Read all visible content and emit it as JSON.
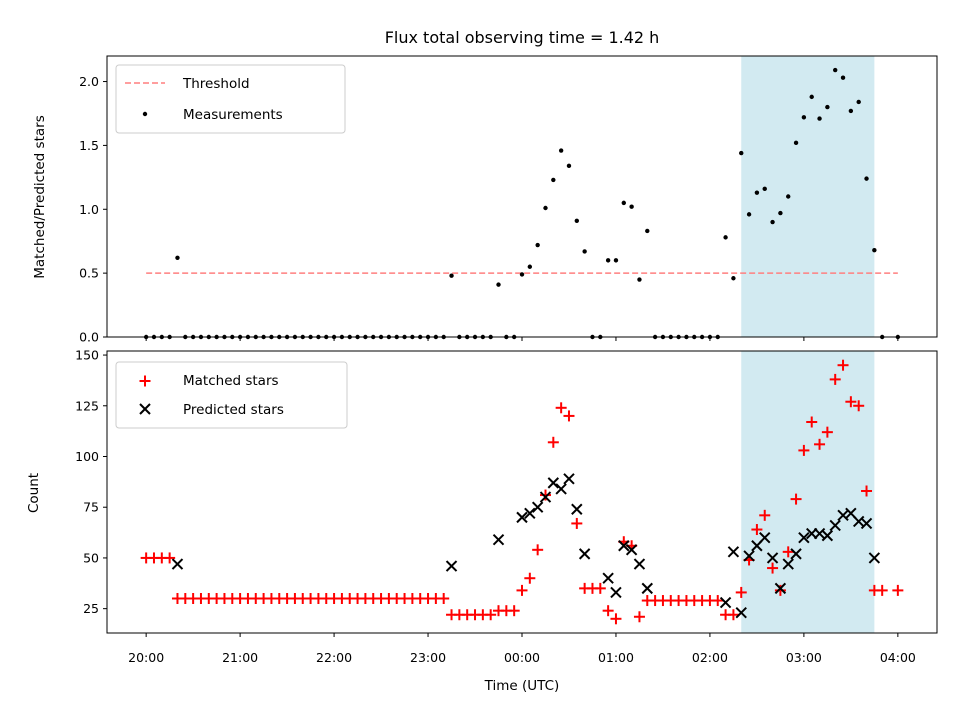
{
  "chart_data": [
    {
      "type": "scatter",
      "title": "Flux total observing time = 1.42 h",
      "xlabel": "",
      "ylabel": "Matched/Predicted stars",
      "xlim": [
        "19:35",
        "04:25"
      ],
      "ylim": [
        0,
        2.2
      ],
      "yticks": [
        "0.0",
        "0.5",
        "1.0",
        "1.5",
        "2.0"
      ],
      "grid": false,
      "legend_position": "top-left",
      "shaded_interval": [
        "02:20",
        "03:45"
      ],
      "shade_color": "#add8e6",
      "series": [
        {
          "name": "Threshold",
          "kind": "dashed-line",
          "color": "#ff7f7f",
          "x": [
            "20:00",
            "04:00"
          ],
          "y": [
            0.5,
            0.5
          ]
        },
        {
          "name": "Measurements",
          "kind": "points",
          "color": "#000000",
          "points": [
            [
              "20:00",
              0
            ],
            [
              "20:05",
              0
            ],
            [
              "20:10",
              0
            ],
            [
              "20:15",
              0
            ],
            [
              "20:20",
              0.62
            ],
            [
              "20:25",
              0
            ],
            [
              "20:30",
              0
            ],
            [
              "20:35",
              0
            ],
            [
              "20:40",
              0
            ],
            [
              "20:45",
              0
            ],
            [
              "20:50",
              0
            ],
            [
              "20:55",
              0
            ],
            [
              "21:00",
              0
            ],
            [
              "21:05",
              0
            ],
            [
              "21:10",
              0
            ],
            [
              "21:15",
              0
            ],
            [
              "21:20",
              0
            ],
            [
              "21:25",
              0
            ],
            [
              "21:30",
              0
            ],
            [
              "21:35",
              0
            ],
            [
              "21:40",
              0
            ],
            [
              "21:45",
              0
            ],
            [
              "21:50",
              0
            ],
            [
              "21:55",
              0
            ],
            [
              "22:00",
              0
            ],
            [
              "22:05",
              0
            ],
            [
              "22:10",
              0
            ],
            [
              "22:15",
              0
            ],
            [
              "22:20",
              0
            ],
            [
              "22:25",
              0
            ],
            [
              "22:30",
              0
            ],
            [
              "22:35",
              0
            ],
            [
              "22:40",
              0
            ],
            [
              "22:45",
              0
            ],
            [
              "22:50",
              0
            ],
            [
              "22:55",
              0
            ],
            [
              "23:00",
              0
            ],
            [
              "23:05",
              0
            ],
            [
              "23:10",
              0
            ],
            [
              "23:15",
              0.48
            ],
            [
              "23:20",
              0
            ],
            [
              "23:25",
              0
            ],
            [
              "23:30",
              0
            ],
            [
              "23:35",
              0
            ],
            [
              "23:40",
              0
            ],
            [
              "23:45",
              0.41
            ],
            [
              "23:50",
              0
            ],
            [
              "23:55",
              0
            ],
            [
              "00:00",
              0.49
            ],
            [
              "00:05",
              0.55
            ],
            [
              "00:10",
              0.72
            ],
            [
              "00:15",
              1.01
            ],
            [
              "00:20",
              1.23
            ],
            [
              "00:25",
              1.46
            ],
            [
              "00:30",
              1.34
            ],
            [
              "00:35",
              0.91
            ],
            [
              "00:40",
              0.67
            ],
            [
              "00:45",
              0
            ],
            [
              "00:50",
              0
            ],
            [
              "00:55",
              0.6
            ],
            [
              "01:00",
              0.6
            ],
            [
              "01:05",
              1.05
            ],
            [
              "01:10",
              1.02
            ],
            [
              "01:15",
              0.45
            ],
            [
              "01:20",
              0.83
            ],
            [
              "01:25",
              0
            ],
            [
              "01:30",
              0
            ],
            [
              "01:35",
              0
            ],
            [
              "01:40",
              0
            ],
            [
              "01:45",
              0
            ],
            [
              "01:50",
              0
            ],
            [
              "01:55",
              0
            ],
            [
              "02:00",
              0
            ],
            [
              "02:05",
              0
            ],
            [
              "02:10",
              0.78
            ],
            [
              "02:15",
              0.46
            ],
            [
              "02:20",
              1.44
            ],
            [
              "02:25",
              0.96
            ],
            [
              "02:30",
              1.13
            ],
            [
              "02:35",
              1.16
            ],
            [
              "02:40",
              0.9
            ],
            [
              "02:45",
              0.97
            ],
            [
              "02:50",
              1.1
            ],
            [
              "02:55",
              1.52
            ],
            [
              "03:00",
              1.72
            ],
            [
              "03:05",
              1.88
            ],
            [
              "03:10",
              1.71
            ],
            [
              "03:15",
              1.8
            ],
            [
              "03:20",
              2.09
            ],
            [
              "03:25",
              2.03
            ],
            [
              "03:30",
              1.77
            ],
            [
              "03:35",
              1.84
            ],
            [
              "03:40",
              1.24
            ],
            [
              "03:45",
              0.68
            ],
            [
              "03:50",
              0
            ],
            [
              "04:00",
              0
            ]
          ]
        }
      ]
    },
    {
      "type": "scatter",
      "title": "",
      "xlabel": "Time (UTC)",
      "ylabel": "Count",
      "xlim": [
        "19:35",
        "04:25"
      ],
      "ylim": [
        13,
        152
      ],
      "xticks": [
        "20:00",
        "21:00",
        "22:00",
        "23:00",
        "00:00",
        "01:00",
        "02:00",
        "03:00",
        "04:00"
      ],
      "yticks": [
        "25",
        "50",
        "75",
        "100",
        "125",
        "150"
      ],
      "grid": false,
      "legend_position": "top-left",
      "shaded_interval": [
        "02:20",
        "03:45"
      ],
      "shade_color": "#add8e6",
      "series": [
        {
          "name": "Matched stars",
          "marker": "+",
          "color": "#ff0000",
          "points": [
            [
              "20:00",
              50
            ],
            [
              "20:05",
              50
            ],
            [
              "20:10",
              50
            ],
            [
              "20:15",
              50
            ],
            [
              "20:20",
              30
            ],
            [
              "20:25",
              30
            ],
            [
              "20:30",
              30
            ],
            [
              "20:35",
              30
            ],
            [
              "20:40",
              30
            ],
            [
              "20:45",
              30
            ],
            [
              "20:50",
              30
            ],
            [
              "20:55",
              30
            ],
            [
              "21:00",
              30
            ],
            [
              "21:05",
              30
            ],
            [
              "21:10",
              30
            ],
            [
              "21:15",
              30
            ],
            [
              "21:20",
              30
            ],
            [
              "21:25",
              30
            ],
            [
              "21:30",
              30
            ],
            [
              "21:35",
              30
            ],
            [
              "21:40",
              30
            ],
            [
              "21:45",
              30
            ],
            [
              "21:50",
              30
            ],
            [
              "21:55",
              30
            ],
            [
              "22:00",
              30
            ],
            [
              "22:05",
              30
            ],
            [
              "22:10",
              30
            ],
            [
              "22:15",
              30
            ],
            [
              "22:20",
              30
            ],
            [
              "22:25",
              30
            ],
            [
              "22:30",
              30
            ],
            [
              "22:35",
              30
            ],
            [
              "22:40",
              30
            ],
            [
              "22:45",
              30
            ],
            [
              "22:50",
              30
            ],
            [
              "22:55",
              30
            ],
            [
              "23:00",
              30
            ],
            [
              "23:05",
              30
            ],
            [
              "23:10",
              30
            ],
            [
              "23:15",
              22
            ],
            [
              "23:20",
              22
            ],
            [
              "23:25",
              22
            ],
            [
              "23:30",
              22
            ],
            [
              "23:35",
              22
            ],
            [
              "23:40",
              22
            ],
            [
              "23:45",
              24
            ],
            [
              "23:50",
              24
            ],
            [
              "23:55",
              24
            ],
            [
              "00:00",
              34
            ],
            [
              "00:05",
              40
            ],
            [
              "00:10",
              54
            ],
            [
              "00:15",
              81
            ],
            [
              "00:20",
              107
            ],
            [
              "00:25",
              124
            ],
            [
              "00:30",
              120
            ],
            [
              "00:35",
              67
            ],
            [
              "00:40",
              35
            ],
            [
              "00:45",
              35
            ],
            [
              "00:50",
              35
            ],
            [
              "00:55",
              24
            ],
            [
              "01:00",
              20
            ],
            [
              "01:05",
              58
            ],
            [
              "01:10",
              56
            ],
            [
              "01:15",
              21
            ],
            [
              "01:20",
              29
            ],
            [
              "01:25",
              29
            ],
            [
              "01:30",
              29
            ],
            [
              "01:35",
              29
            ],
            [
              "01:40",
              29
            ],
            [
              "01:45",
              29
            ],
            [
              "01:50",
              29
            ],
            [
              "01:55",
              29
            ],
            [
              "02:00",
              29
            ],
            [
              "02:05",
              29
            ],
            [
              "02:10",
              22
            ],
            [
              "02:15",
              22
            ],
            [
              "02:20",
              33
            ],
            [
              "02:25",
              49
            ],
            [
              "02:30",
              64
            ],
            [
              "02:35",
              71
            ],
            [
              "02:40",
              45
            ],
            [
              "02:45",
              34
            ],
            [
              "02:50",
              53
            ],
            [
              "02:55",
              79
            ],
            [
              "03:00",
              103
            ],
            [
              "03:05",
              117
            ],
            [
              "03:10",
              106
            ],
            [
              "03:15",
              112
            ],
            [
              "03:20",
              138
            ],
            [
              "03:25",
              145
            ],
            [
              "03:30",
              127
            ],
            [
              "03:35",
              125
            ],
            [
              "03:40",
              83
            ],
            [
              "03:45",
              34
            ],
            [
              "03:50",
              34
            ],
            [
              "04:00",
              34
            ]
          ]
        },
        {
          "name": "Predicted stars",
          "marker": "x",
          "color": "#000000",
          "points": [
            [
              "20:20",
              47
            ],
            [
              "23:15",
              46
            ],
            [
              "23:45",
              59
            ],
            [
              "00:00",
              70
            ],
            [
              "00:05",
              72
            ],
            [
              "00:10",
              75
            ],
            [
              "00:15",
              80
            ],
            [
              "00:20",
              87
            ],
            [
              "00:25",
              84
            ],
            [
              "00:30",
              89
            ],
            [
              "00:35",
              74
            ],
            [
              "00:40",
              52
            ],
            [
              "00:55",
              40
            ],
            [
              "01:00",
              33
            ],
            [
              "01:05",
              56
            ],
            [
              "01:10",
              54
            ],
            [
              "01:15",
              47
            ],
            [
              "01:20",
              35
            ],
            [
              "02:10",
              28
            ],
            [
              "02:15",
              53
            ],
            [
              "02:20",
              23
            ],
            [
              "02:25",
              51
            ],
            [
              "02:30",
              56
            ],
            [
              "02:35",
              60
            ],
            [
              "02:40",
              50
            ],
            [
              "02:45",
              35
            ],
            [
              "02:50",
              47
            ],
            [
              "02:55",
              52
            ],
            [
              "03:00",
              60
            ],
            [
              "03:05",
              62
            ],
            [
              "03:10",
              62
            ],
            [
              "03:15",
              61
            ],
            [
              "03:20",
              66
            ],
            [
              "03:25",
              71
            ],
            [
              "03:30",
              72
            ],
            [
              "03:35",
              68
            ],
            [
              "03:40",
              67
            ],
            [
              "03:45",
              50
            ]
          ]
        }
      ]
    }
  ]
}
